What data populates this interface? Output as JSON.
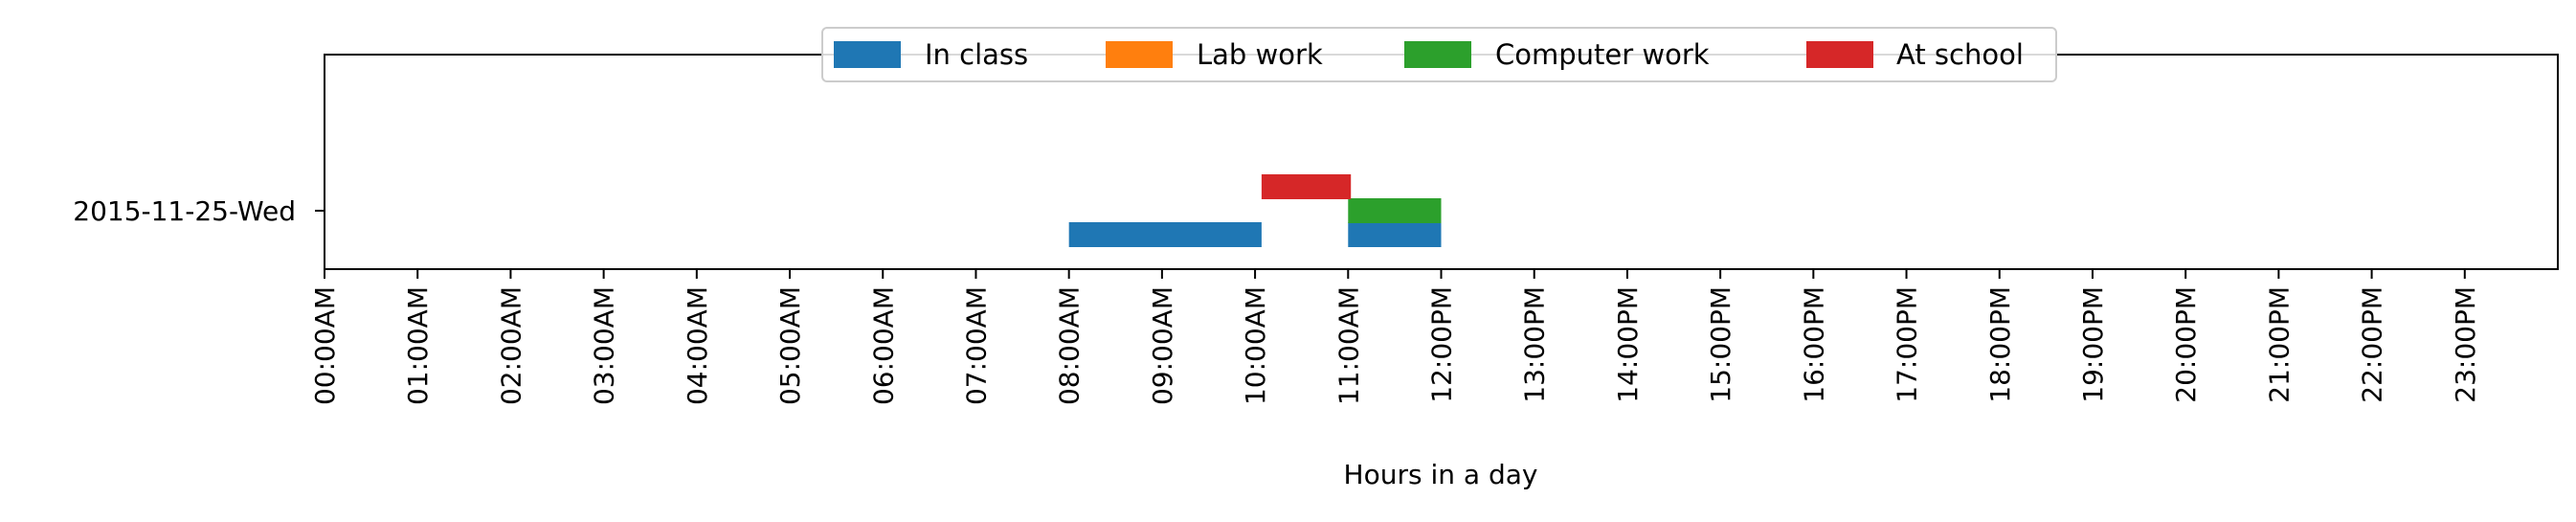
{
  "chart_data": {
    "type": "bar",
    "orientation": "horizontal",
    "xlabel": "Hours in a day",
    "ylabel": "",
    "title": "",
    "xlim": [
      0,
      24
    ],
    "x_ticks": [
      0,
      1,
      2,
      3,
      4,
      5,
      6,
      7,
      8,
      9,
      10,
      11,
      12,
      13,
      14,
      15,
      16,
      17,
      18,
      19,
      20,
      21,
      22,
      23
    ],
    "x_tick_labels": [
      "00:00AM",
      "01:00AM",
      "02:00AM",
      "03:00AM",
      "04:00AM",
      "05:00AM",
      "06:00AM",
      "07:00AM",
      "08:00AM",
      "09:00AM",
      "10:00AM",
      "11:00AM",
      "12:00PM",
      "13:00PM",
      "14:00PM",
      "15:00PM",
      "16:00PM",
      "17:00PM",
      "18:00PM",
      "19:00PM",
      "20:00PM",
      "21:00PM",
      "22:00PM",
      "23:00PM"
    ],
    "categories": [
      "2015-11-25-Wed"
    ],
    "grid": false,
    "legend_position": "top-center",
    "series": [
      {
        "name": "In class",
        "color": "#1f77b4",
        "segments": [
          {
            "category": "2015-11-25-Wed",
            "start": 8.0,
            "end": 10.07
          },
          {
            "category": "2015-11-25-Wed",
            "start": 11.0,
            "end": 12.0
          }
        ]
      },
      {
        "name": "Lab work",
        "color": "#ff7f0e",
        "segments": []
      },
      {
        "name": "Computer work",
        "color": "#2ca02c",
        "segments": [
          {
            "category": "2015-11-25-Wed",
            "start": 11.0,
            "end": 12.0
          }
        ]
      },
      {
        "name": "At school",
        "color": "#d62728",
        "segments": [
          {
            "category": "2015-11-25-Wed",
            "start": 10.07,
            "end": 11.03
          }
        ]
      }
    ]
  }
}
